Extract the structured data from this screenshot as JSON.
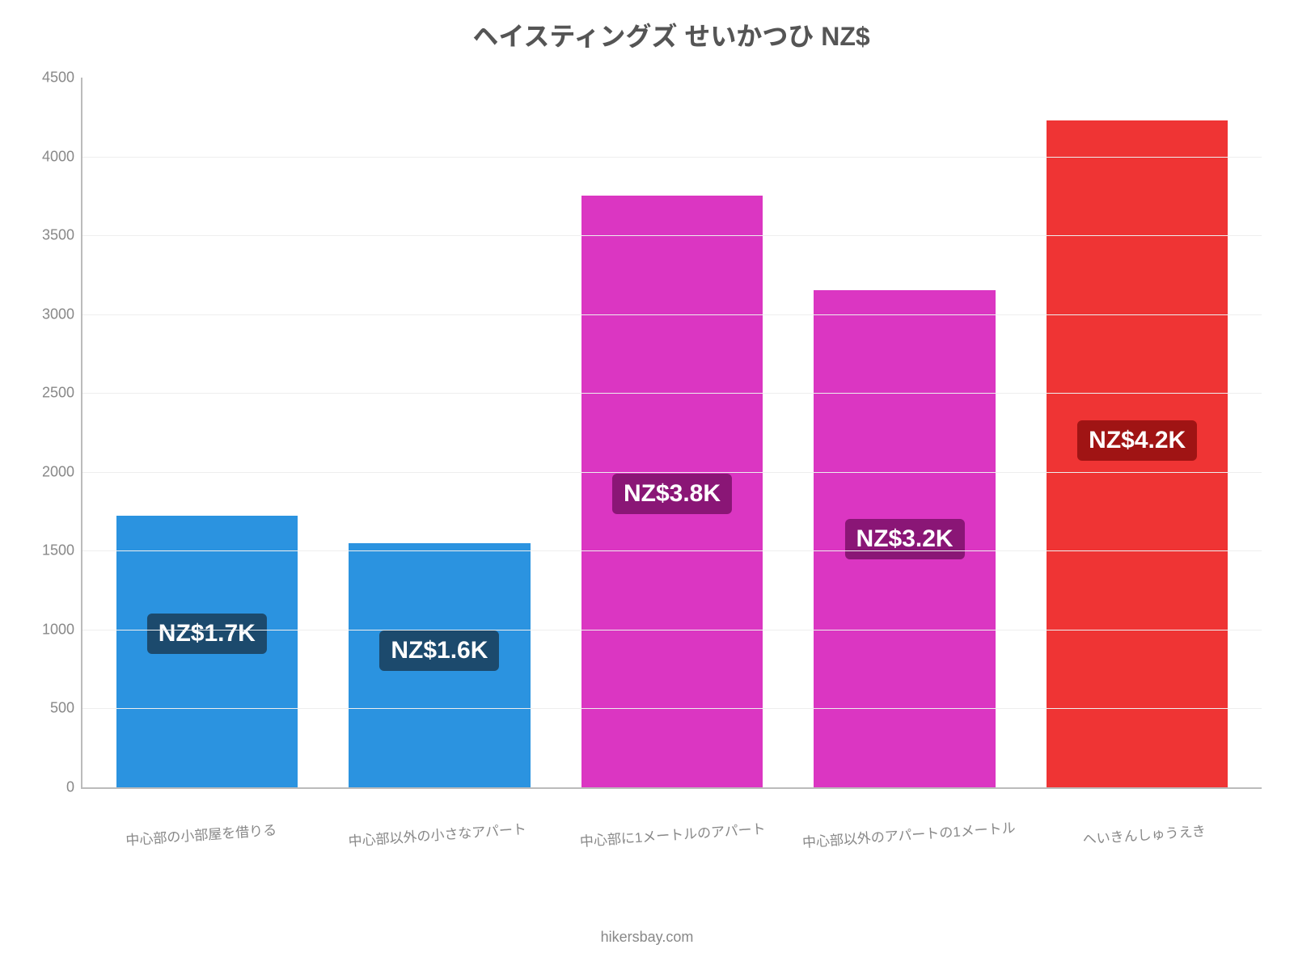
{
  "chart": {
    "type": "bar",
    "title": "ヘイスティングズ せいかつひ NZ$",
    "title_fontsize": 32,
    "title_color": "#555555",
    "background_color": "#ffffff",
    "grid_color": "#eeeeee",
    "axis_color": "#bbbbbb",
    "ylim_min": 0,
    "ylim_max": 4500,
    "ytick_step": 500,
    "yticks": [
      "0",
      "500",
      "1000",
      "1500",
      "2000",
      "2500",
      "3000",
      "3500",
      "4000",
      "4500"
    ],
    "ytick_fontsize": 18,
    "ytick_color": "#888888",
    "xlabel_fontsize": 17,
    "xlabel_color": "#888888",
    "xlabel_rotate_deg": -4,
    "bar_width_ratio": 0.78,
    "value_badge_fontsize": 30,
    "attribution": "hikersbay.com",
    "attribution_fontsize": 18,
    "attribution_color": "#888888",
    "bars": [
      {
        "category": "中心部の小部屋を借りる",
        "value": 1720,
        "label": "NZ$1.7K",
        "bar_color": "#2b93e0",
        "badge_bg": "#1c4a6d",
        "badge_text": "#ffffff",
        "badge_offset_pct": 36
      },
      {
        "category": "中心部以外の小さなアパート",
        "value": 1550,
        "label": "NZ$1.6K",
        "bar_color": "#2b93e0",
        "badge_bg": "#1c4a6d",
        "badge_text": "#ffffff",
        "badge_offset_pct": 36
      },
      {
        "category": "中心部に1メートルのアパート",
        "value": 3750,
        "label": "NZ$3.8K",
        "bar_color": "#db36c2",
        "badge_bg": "#8a1676",
        "badge_text": "#ffffff",
        "badge_offset_pct": 47
      },
      {
        "category": "中心部以外のアパートの1メートル",
        "value": 3150,
        "label": "NZ$3.2K",
        "bar_color": "#db36c2",
        "badge_bg": "#8a1676",
        "badge_text": "#ffffff",
        "badge_offset_pct": 46
      },
      {
        "category": "へいきんしゅうえき",
        "value": 4230,
        "label": "NZ$4.2K",
        "bar_color": "#ef3434",
        "badge_bg": "#a01414",
        "badge_text": "#ffffff",
        "badge_offset_pct": 45
      }
    ]
  }
}
